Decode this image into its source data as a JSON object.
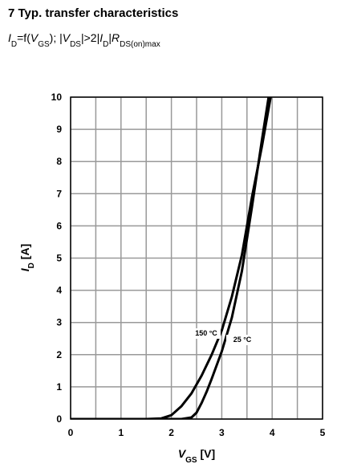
{
  "chart_data": {
    "type": "line",
    "title": "7 Typ. transfer characteristics",
    "subtitle_parts": [
      "I",
      "D",
      "=f(",
      "V",
      "GS",
      "); |",
      "V",
      "DS",
      "|>2|",
      "I",
      "D",
      "|",
      "R",
      "DS(on)max"
    ],
    "xlabel_parts": [
      "V",
      "GS",
      " [V]"
    ],
    "ylabel_parts": [
      "I",
      "D",
      " [A]"
    ],
    "xlim": [
      0,
      5
    ],
    "ylim": [
      0,
      10
    ],
    "xticks": [
      0,
      1,
      2,
      3,
      4,
      5
    ],
    "yticks": [
      0,
      1,
      2,
      3,
      4,
      5,
      6,
      7,
      8,
      9,
      10
    ],
    "x_minor_grid": [
      0.5,
      1.5,
      2.5,
      3.5,
      4.5
    ],
    "grid": true,
    "series": [
      {
        "name": "150 °C",
        "color": "#000000",
        "x": [
          0,
          1.5,
          1.8,
          2.0,
          2.2,
          2.4,
          2.6,
          2.8,
          3.0,
          3.2,
          3.4,
          3.6,
          3.8,
          3.97
        ],
        "values": [
          0,
          0,
          0.02,
          0.12,
          0.4,
          0.8,
          1.35,
          2.0,
          2.75,
          3.8,
          5.1,
          6.9,
          8.5,
          10
        ]
      },
      {
        "name": "25 °C",
        "color": "#000000",
        "x": [
          0,
          2.2,
          2.4,
          2.5,
          2.6,
          2.7,
          2.8,
          3.0,
          3.2,
          3.4,
          3.6,
          3.8,
          3.93
        ],
        "values": [
          0,
          0,
          0.05,
          0.2,
          0.5,
          0.85,
          1.25,
          2.1,
          3.15,
          4.6,
          6.6,
          8.7,
          10
        ]
      }
    ]
  }
}
